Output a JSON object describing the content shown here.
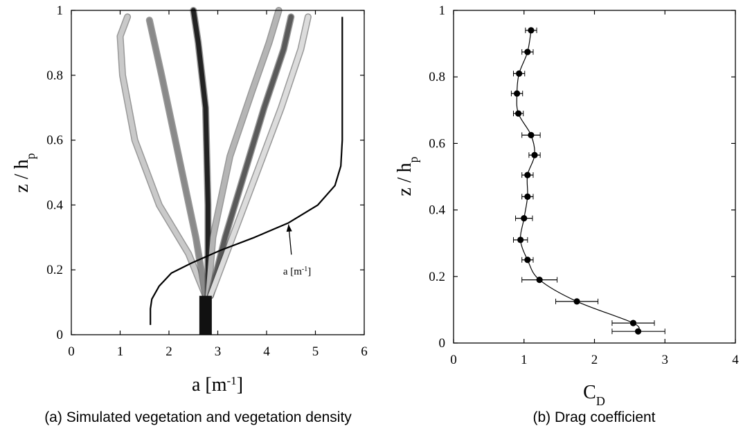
{
  "chart_data": [
    {
      "panel": "a",
      "type": "line",
      "caption": "(a) Simulated vegetation and vegetation density",
      "xlabel": "a [m",
      "xlabel_sup": "-1",
      "xlabel_end": "]",
      "ylabel": "z / h",
      "ylabel_sub": "p",
      "xlim": [
        0,
        6
      ],
      "ylim": [
        0,
        1
      ],
      "xticks": [
        "0",
        "1",
        "2",
        "3",
        "4",
        "5",
        "6"
      ],
      "yticks": [
        "0",
        "0.2",
        "0.4",
        "0.6",
        "0.8",
        "1"
      ],
      "grid": false,
      "annotation": {
        "text": "a [m",
        "sup": "-1",
        "end": "]",
        "point_at": [
          4.45,
          0.34
        ],
        "text_at": [
          4.65,
          0.2
        ]
      },
      "series": [
        {
          "role": "vegetation density profile",
          "color": "#000000",
          "x": [
            1.62,
            1.62,
            1.65,
            1.8,
            2.05,
            2.45,
            3.05,
            3.75,
            4.45,
            5.05,
            5.4,
            5.52,
            5.55,
            5.55
          ],
          "y": [
            0.03,
            0.08,
            0.11,
            0.15,
            0.19,
            0.22,
            0.26,
            0.3,
            0.345,
            0.4,
            0.46,
            0.52,
            0.6,
            0.98
          ]
        }
      ],
      "vegetation_stem": {
        "x": 2.75,
        "y": [
          0,
          0.12
        ],
        "color": "#111111"
      },
      "vegetation_blades": [
        {
          "color": "#c9c9c9",
          "x": [
            2.75,
            2.4,
            1.8,
            1.3,
            1.05,
            1.0,
            1.15
          ],
          "y": [
            0.12,
            0.25,
            0.4,
            0.6,
            0.8,
            0.92,
            0.98
          ]
        },
        {
          "color": "#8a8a8a",
          "x": [
            2.75,
            2.55,
            2.2,
            1.85,
            1.6
          ],
          "y": [
            0.12,
            0.3,
            0.55,
            0.8,
            0.97
          ]
        },
        {
          "color": "#222222",
          "x": [
            2.8,
            2.8,
            2.75,
            2.6,
            2.5
          ],
          "y": [
            0.12,
            0.4,
            0.7,
            0.9,
            1.0
          ]
        },
        {
          "color": "#b5b5b5",
          "x": [
            2.8,
            2.9,
            3.25,
            3.7,
            4.05,
            4.25
          ],
          "y": [
            0.12,
            0.3,
            0.55,
            0.75,
            0.9,
            1.0
          ]
        },
        {
          "color": "#5a5a5a",
          "x": [
            2.85,
            3.15,
            3.55,
            3.95,
            4.35,
            4.5
          ],
          "y": [
            0.12,
            0.3,
            0.5,
            0.7,
            0.88,
            0.98
          ]
        },
        {
          "color": "#dcdcdc",
          "x": [
            2.85,
            3.3,
            3.8,
            4.3,
            4.7,
            4.85
          ],
          "y": [
            0.12,
            0.3,
            0.5,
            0.7,
            0.88,
            0.98
          ]
        }
      ]
    },
    {
      "panel": "b",
      "type": "line",
      "caption": "(b) Drag coefficient",
      "xlabel": "C",
      "xlabel_sub": "D",
      "ylabel": "z / h",
      "ylabel_sub": "p",
      "xlim": [
        0,
        4
      ],
      "ylim": [
        0,
        1
      ],
      "xticks": [
        "0",
        "1",
        "2",
        "3",
        "4"
      ],
      "yticks": [
        "0",
        "0.2",
        "0.4",
        "0.6",
        "0.8",
        "1"
      ],
      "grid": false,
      "series": [
        {
          "role": "drag coefficient with horizontal error bars",
          "color": "#000000",
          "points": [
            {
              "x": 2.62,
              "y": 0.035,
              "xerr_low": 2.25,
              "xerr_high": 3.0
            },
            {
              "x": 2.55,
              "y": 0.06,
              "xerr_low": 2.25,
              "xerr_high": 2.85
            },
            {
              "x": 1.75,
              "y": 0.125,
              "xerr_low": 1.45,
              "xerr_high": 2.05
            },
            {
              "x": 1.22,
              "y": 0.19,
              "xerr_low": 0.97,
              "xerr_high": 1.47
            },
            {
              "x": 1.05,
              "y": 0.25,
              "xerr_low": 0.97,
              "xerr_high": 1.13
            },
            {
              "x": 0.95,
              "y": 0.31,
              "xerr_low": 0.85,
              "xerr_high": 1.05
            },
            {
              "x": 1.0,
              "y": 0.375,
              "xerr_low": 0.88,
              "xerr_high": 1.12
            },
            {
              "x": 1.05,
              "y": 0.44,
              "xerr_low": 0.97,
              "xerr_high": 1.13
            },
            {
              "x": 1.05,
              "y": 0.505,
              "xerr_low": 0.97,
              "xerr_high": 1.13
            },
            {
              "x": 1.15,
              "y": 0.565,
              "xerr_low": 1.07,
              "xerr_high": 1.23
            },
            {
              "x": 1.1,
              "y": 0.625,
              "xerr_low": 0.97,
              "xerr_high": 1.23
            },
            {
              "x": 0.92,
              "y": 0.69,
              "xerr_low": 0.85,
              "xerr_high": 0.99
            },
            {
              "x": 0.9,
              "y": 0.75,
              "xerr_low": 0.82,
              "xerr_high": 0.98
            },
            {
              "x": 0.93,
              "y": 0.81,
              "xerr_low": 0.85,
              "xerr_high": 1.01
            },
            {
              "x": 1.05,
              "y": 0.875,
              "xerr_low": 0.97,
              "xerr_high": 1.13
            },
            {
              "x": 1.1,
              "y": 0.94,
              "xerr_low": 1.02,
              "xerr_high": 1.18
            }
          ]
        }
      ]
    }
  ]
}
